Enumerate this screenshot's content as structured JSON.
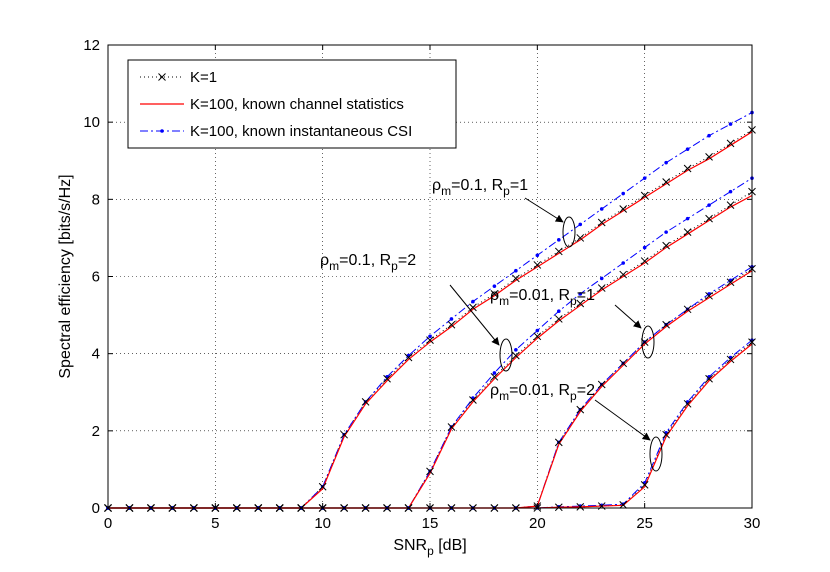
{
  "chart_data": {
    "type": "line",
    "xlabel": "SNR",
    "xlabel_sub": "p",
    "xlabel_unit": " [dB]",
    "ylabel": "Spectral efficiency [bits/s/Hz]",
    "xlim": [
      0,
      30
    ],
    "ylim": [
      0,
      12
    ],
    "xticks": [
      0,
      5,
      10,
      15,
      20,
      25,
      30
    ],
    "yticks": [
      0,
      2,
      4,
      6,
      8,
      10,
      12
    ],
    "grid": true,
    "legend_position": "top-left",
    "x": [
      0,
      1,
      2,
      3,
      4,
      5,
      6,
      7,
      8,
      9,
      10,
      11,
      12,
      13,
      14,
      15,
      16,
      17,
      18,
      19,
      20,
      21,
      22,
      23,
      24,
      25,
      26,
      27,
      28,
      29,
      30
    ],
    "legend": [
      {
        "name": "K=1",
        "color": "#000000",
        "style": "dotted-x"
      },
      {
        "name": "K=100, known channel statistics",
        "color": "#ff0000",
        "style": "solid"
      },
      {
        "name": "K=100, known instantaneous CSI",
        "color": "#0000ff",
        "style": "dashdot-dot"
      }
    ],
    "groups": [
      {
        "label_rho": "0.1",
        "label_R": "1",
        "K1": [
          0,
          0,
          0,
          0,
          0,
          0,
          0,
          0,
          0,
          0,
          0.55,
          1.9,
          2.75,
          3.35,
          3.9,
          4.35,
          4.75,
          5.2,
          5.55,
          5.95,
          6.3,
          6.65,
          7.0,
          7.4,
          7.75,
          8.1,
          8.45,
          8.8,
          9.1,
          9.45,
          9.8
        ],
        "stat": [
          0,
          0,
          0,
          0,
          0,
          0,
          0,
          0,
          0,
          0,
          0.5,
          1.85,
          2.7,
          3.3,
          3.85,
          4.3,
          4.7,
          5.15,
          5.5,
          5.9,
          6.25,
          6.6,
          6.95,
          7.35,
          7.7,
          8.05,
          8.4,
          8.75,
          9.05,
          9.4,
          9.75
        ],
        "inst": [
          0,
          0,
          0,
          0,
          0,
          0,
          0,
          0,
          0,
          0,
          0.55,
          1.9,
          2.75,
          3.4,
          3.95,
          4.45,
          4.9,
          5.35,
          5.75,
          6.15,
          6.55,
          6.95,
          7.35,
          7.75,
          8.15,
          8.55,
          8.95,
          9.3,
          9.65,
          9.95,
          10.25
        ]
      },
      {
        "label_rho": "0.1",
        "label_R": "2",
        "K1": [
          0,
          0,
          0,
          0,
          0,
          0,
          0,
          0,
          0,
          0,
          0,
          0,
          0,
          0,
          0,
          0.95,
          2.1,
          2.8,
          3.4,
          3.95,
          4.45,
          4.9,
          5.3,
          5.7,
          6.05,
          6.4,
          6.8,
          7.15,
          7.5,
          7.85,
          8.2
        ],
        "stat": [
          0,
          0,
          0,
          0,
          0,
          0,
          0,
          0,
          0,
          0,
          0,
          0,
          0,
          0,
          0,
          0.9,
          2.05,
          2.75,
          3.35,
          3.9,
          4.4,
          4.85,
          5.25,
          5.65,
          6.0,
          6.35,
          6.75,
          7.1,
          7.45,
          7.8,
          8.1
        ],
        "inst": [
          0,
          0,
          0,
          0,
          0,
          0,
          0,
          0,
          0,
          0,
          0,
          0,
          0,
          0,
          0,
          0.95,
          2.1,
          2.85,
          3.5,
          4.1,
          4.6,
          5.1,
          5.55,
          5.95,
          6.35,
          6.75,
          7.15,
          7.5,
          7.85,
          8.2,
          8.55
        ]
      },
      {
        "label_rho": "0.01",
        "label_R": "1",
        "K1": [
          0,
          0,
          0,
          0,
          0,
          0,
          0,
          0,
          0,
          0,
          0,
          0,
          0,
          0,
          0,
          0,
          0,
          0,
          0,
          0,
          0.05,
          1.7,
          2.55,
          3.2,
          3.75,
          4.3,
          4.75,
          5.15,
          5.5,
          5.85,
          6.2
        ],
        "stat": [
          0,
          0,
          0,
          0,
          0,
          0,
          0,
          0,
          0,
          0,
          0,
          0,
          0,
          0,
          0,
          0,
          0,
          0,
          0,
          0,
          0.05,
          1.65,
          2.5,
          3.15,
          3.7,
          4.25,
          4.7,
          5.1,
          5.45,
          5.8,
          6.15
        ],
        "inst": [
          0,
          0,
          0,
          0,
          0,
          0,
          0,
          0,
          0,
          0,
          0,
          0,
          0,
          0,
          0,
          0,
          0,
          0,
          0,
          0,
          0.05,
          1.7,
          2.55,
          3.2,
          3.75,
          4.3,
          4.75,
          5.15,
          5.55,
          5.9,
          6.25
        ]
      },
      {
        "label_rho": "0.01",
        "label_R": "2",
        "K1": [
          0,
          0,
          0,
          0,
          0,
          0,
          0,
          0,
          0,
          0,
          0,
          0,
          0,
          0,
          0,
          0,
          0,
          0,
          0,
          0,
          0,
          0.02,
          0.03,
          0.05,
          0.08,
          0.6,
          1.9,
          2.7,
          3.35,
          3.85,
          4.3
        ],
        "stat": [
          0,
          0,
          0,
          0,
          0,
          0,
          0,
          0,
          0,
          0,
          0,
          0,
          0,
          0,
          0,
          0,
          0,
          0,
          0,
          0,
          0,
          0.02,
          0.03,
          0.05,
          0.07,
          0.55,
          1.85,
          2.65,
          3.3,
          3.8,
          4.25
        ],
        "inst": [
          0,
          0,
          0,
          0,
          0,
          0,
          0,
          0,
          0,
          0,
          0,
          0,
          0,
          0,
          0,
          0,
          0,
          0,
          0,
          0,
          0,
          0.03,
          0.05,
          0.07,
          0.1,
          0.65,
          1.95,
          2.75,
          3.4,
          3.9,
          4.35
        ]
      }
    ],
    "annotations": [
      {
        "rho": "0.1",
        "R": "1"
      },
      {
        "rho": "0.1",
        "R": "2"
      },
      {
        "rho": "0.01",
        "R": "1"
      },
      {
        "rho": "0.01",
        "R": "2"
      }
    ]
  }
}
